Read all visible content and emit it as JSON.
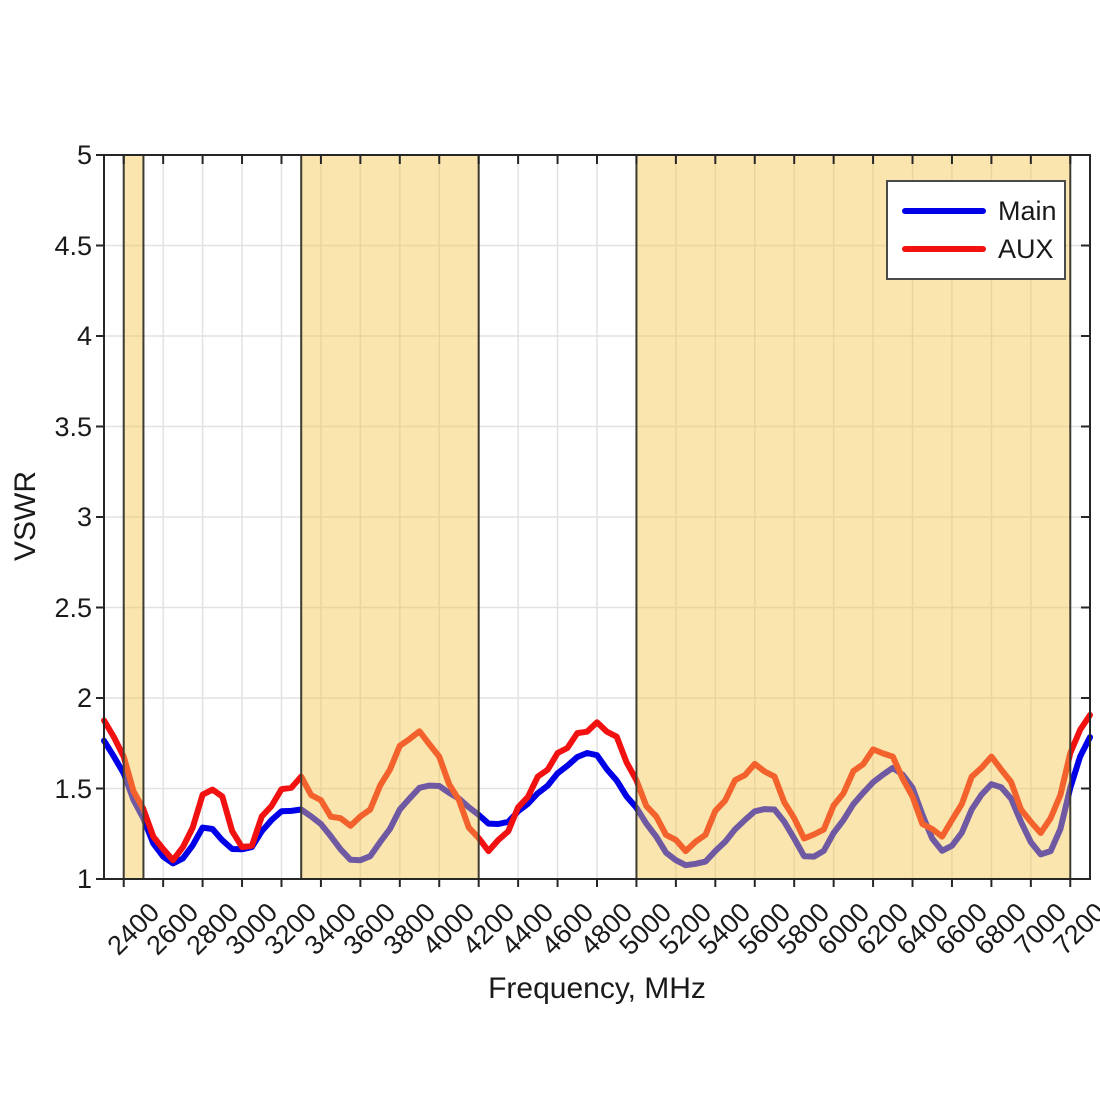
{
  "axes": {
    "xlabel": "Frequency, MHz",
    "ylabel": "VSWR",
    "xlim": [
      2300,
      7300
    ],
    "ylim": [
      1,
      5
    ],
    "x_ticks": [
      2400,
      2600,
      2800,
      3000,
      3200,
      3400,
      3600,
      3800,
      4000,
      4200,
      4400,
      4600,
      4800,
      5000,
      5200,
      5400,
      5600,
      5800,
      6000,
      6200,
      6400,
      6600,
      6800,
      7000,
      7200
    ],
    "y_ticks": [
      1,
      1.5,
      2,
      2.5,
      3,
      3.5,
      4,
      4.5,
      5
    ],
    "y_tick_labels": [
      "1",
      "1.5",
      "2",
      "2.5",
      "3",
      "3.5",
      "4",
      "4.5",
      "5"
    ],
    "grid": true,
    "grid_color": "#e2e2e2",
    "spine_color": "#262626"
  },
  "legend": {
    "position": "top-right",
    "entries": [
      {
        "label": "Main",
        "color": "#0000e8"
      },
      {
        "label": "AUX",
        "color": "#f21111"
      }
    ]
  },
  "chart_data": {
    "type": "line",
    "title": "",
    "xlabel": "Frequency, MHz",
    "ylabel": "VSWR",
    "xlim": [
      2300,
      7300
    ],
    "ylim": [
      1,
      5
    ],
    "x_unit": "MHz",
    "frequencies_mhz": [
      2300,
      2350,
      2400,
      2450,
      2500,
      2550,
      2600,
      2650,
      2700,
      2750,
      2800,
      2850,
      2900,
      2950,
      3000,
      3050,
      3100,
      3150,
      3200,
      3250,
      3300,
      3350,
      3400,
      3450,
      3500,
      3550,
      3600,
      3650,
      3700,
      3750,
      3800,
      3850,
      3900,
      3950,
      4000,
      4050,
      4100,
      4150,
      4200,
      4250,
      4300,
      4350,
      4400,
      4450,
      4500,
      4550,
      4600,
      4650,
      4700,
      4750,
      4800,
      4850,
      4900,
      4950,
      5000,
      5050,
      5100,
      5150,
      5200,
      5250,
      5300,
      5350,
      5400,
      5450,
      5500,
      5550,
      5600,
      5650,
      5700,
      5750,
      5800,
      5850,
      5900,
      5950,
      6000,
      6050,
      6100,
      6150,
      6200,
      6250,
      6300,
      6350,
      6400,
      6450,
      6500,
      6550,
      6600,
      6650,
      6700,
      6750,
      6800,
      6850,
      6900,
      6950,
      7000,
      7050,
      7100,
      7150,
      7200,
      7250,
      7300
    ],
    "series": [
      {
        "name": "Main",
        "color": "#0000e8",
        "linewidth": 6,
        "ripple_amplitude": 0.004,
        "values": [
          1.76,
          1.68,
          1.58,
          1.44,
          1.33,
          1.2,
          1.12,
          1.09,
          1.11,
          1.19,
          1.28,
          1.28,
          1.21,
          1.17,
          1.16,
          1.18,
          1.26,
          1.33,
          1.37,
          1.38,
          1.38,
          1.35,
          1.3,
          1.24,
          1.16,
          1.11,
          1.1,
          1.13,
          1.2,
          1.28,
          1.38,
          1.45,
          1.5,
          1.52,
          1.51,
          1.48,
          1.44,
          1.4,
          1.35,
          1.31,
          1.3,
          1.32,
          1.37,
          1.42,
          1.47,
          1.52,
          1.58,
          1.63,
          1.67,
          1.7,
          1.68,
          1.61,
          1.54,
          1.46,
          1.39,
          1.31,
          1.23,
          1.15,
          1.1,
          1.08,
          1.08,
          1.1,
          1.15,
          1.21,
          1.27,
          1.33,
          1.37,
          1.39,
          1.38,
          1.32,
          1.22,
          1.13,
          1.12,
          1.16,
          1.25,
          1.33,
          1.41,
          1.48,
          1.53,
          1.58,
          1.61,
          1.58,
          1.5,
          1.36,
          1.22,
          1.16,
          1.18,
          1.26,
          1.38,
          1.47,
          1.52,
          1.51,
          1.44,
          1.32,
          1.2,
          1.14,
          1.15,
          1.28,
          1.5,
          1.68,
          1.78
        ]
      },
      {
        "name": "AUX",
        "color": "#f21111",
        "linewidth": 6,
        "ripple_amplitude": 0.016,
        "values": [
          1.86,
          1.8,
          1.66,
          1.5,
          1.37,
          1.25,
          1.15,
          1.12,
          1.16,
          1.3,
          1.45,
          1.51,
          1.44,
          1.28,
          1.16,
          1.2,
          1.33,
          1.42,
          1.48,
          1.52,
          1.55,
          1.48,
          1.42,
          1.36,
          1.32,
          1.31,
          1.33,
          1.4,
          1.5,
          1.62,
          1.72,
          1.79,
          1.8,
          1.76,
          1.66,
          1.54,
          1.42,
          1.3,
          1.21,
          1.17,
          1.2,
          1.28,
          1.38,
          1.47,
          1.55,
          1.62,
          1.68,
          1.74,
          1.79,
          1.83,
          1.85,
          1.83,
          1.77,
          1.66,
          1.53,
          1.42,
          1.33,
          1.26,
          1.2,
          1.17,
          1.19,
          1.26,
          1.36,
          1.45,
          1.53,
          1.59,
          1.62,
          1.61,
          1.55,
          1.44,
          1.32,
          1.24,
          1.23,
          1.29,
          1.39,
          1.49,
          1.58,
          1.65,
          1.7,
          1.71,
          1.66,
          1.57,
          1.44,
          1.32,
          1.26,
          1.25,
          1.31,
          1.43,
          1.55,
          1.63,
          1.66,
          1.62,
          1.52,
          1.4,
          1.3,
          1.27,
          1.32,
          1.48,
          1.68,
          1.84,
          1.89
        ]
      }
    ],
    "highlight_bands_mhz": [
      [
        2400,
        2500
      ],
      [
        3300,
        4200
      ],
      [
        5000,
        7200
      ]
    ],
    "band_fill": "rgba(244,197,77,0.45)",
    "band_edge_color": "#3d3a30",
    "legend_entries": [
      "Main",
      "AUX"
    ],
    "grid": "on",
    "legend_position": "top-right"
  }
}
